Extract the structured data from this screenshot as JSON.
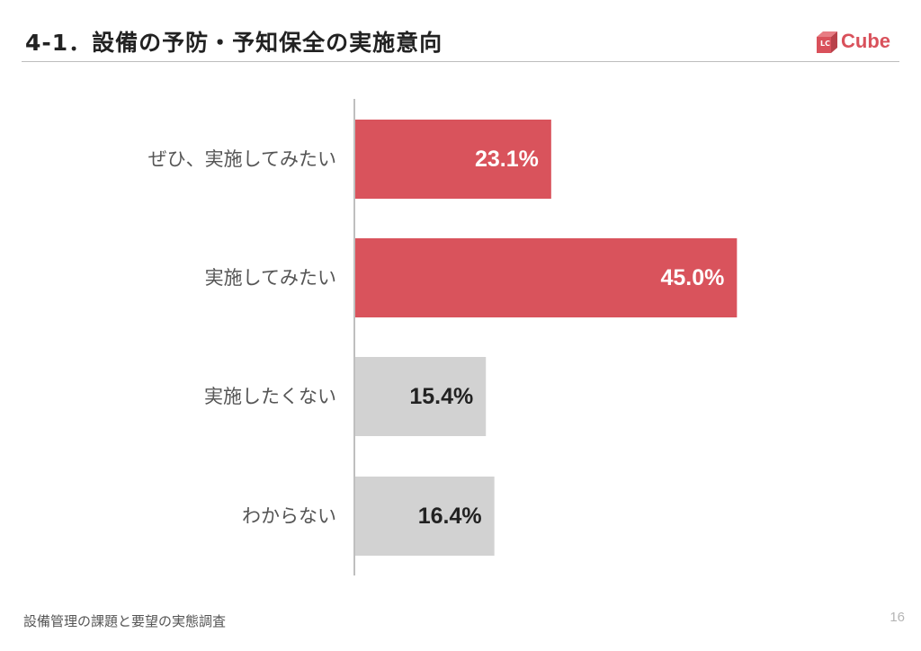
{
  "page": {
    "title": "4-1．設備の予防・予知保全の実施意向",
    "footer": "設備管理の課題と要望の実態調査",
    "page_number": "16"
  },
  "logo": {
    "badge_text": "LC",
    "brand_text": "Cube",
    "icon": "cube-logo-icon",
    "color": "#d9515b"
  },
  "chart_data": {
    "type": "bar",
    "orientation": "horizontal",
    "categories": [
      "ぜひ、実施してみたい",
      "実施してみたい",
      "実施したくない",
      "わからない"
    ],
    "values": [
      23.1,
      45.0,
      15.4,
      16.4
    ],
    "value_labels": [
      "23.1%",
      "45.0%",
      "15.4%",
      "16.4%"
    ],
    "bar_colors": [
      "#d9535c",
      "#d9535c",
      "#d2d2d2",
      "#d2d2d2"
    ],
    "label_colors": [
      "#ffffff",
      "#ffffff",
      "#222222",
      "#222222"
    ],
    "xlim": [
      0,
      100
    ],
    "title": "",
    "xlabel": "",
    "ylabel": "",
    "grid": false,
    "legend": "none"
  }
}
